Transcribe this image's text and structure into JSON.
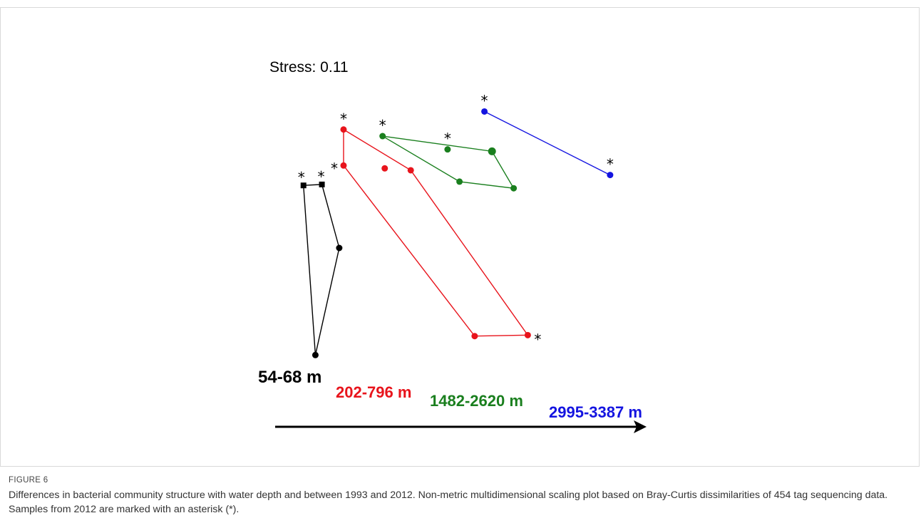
{
  "figure": {
    "label": "FIGURE 6",
    "caption": "Differences in bacterial community structure with water depth and between 1993 and 2012. Non-metric multidimensional scaling plot based on Bray-Curtis dissimilarities of 454 tag sequencing data. Samples from 2012 are marked with an asterisk (*)."
  },
  "chart_data": {
    "type": "scatter",
    "annotation": "Stress: 0.11",
    "marker_2012": "*",
    "series": [
      {
        "name": "54-68 m",
        "color": "#000000",
        "marker": "square-circle",
        "points": [
          [
            -1.39,
            0.66,
            1
          ],
          [
            -1.22,
            0.67,
            1
          ],
          [
            -1.06,
            0.0,
            0
          ],
          [
            -1.28,
            -1.13,
            0
          ]
        ],
        "hull": [
          0,
          1,
          2,
          3
        ]
      },
      {
        "name": "202-796 m",
        "color": "#e8141c",
        "marker": "circle",
        "points": [
          [
            -1.02,
            1.25,
            1
          ],
          [
            -1.02,
            0.87,
            1
          ],
          [
            -0.64,
            0.84,
            0
          ],
          [
            -0.4,
            0.82,
            0
          ],
          [
            0.19,
            -0.93,
            0
          ],
          [
            0.68,
            -0.92,
            1
          ]
        ],
        "hull": [
          0,
          3,
          5,
          4,
          1
        ]
      },
      {
        "name": "1482-2620 m",
        "color": "#1a7f1e",
        "marker": "circle",
        "points": [
          [
            -0.66,
            1.18,
            1
          ],
          [
            -0.06,
            1.04,
            1
          ],
          [
            0.35,
            1.02,
            0
          ],
          [
            0.55,
            0.63,
            0
          ],
          [
            0.05,
            0.7,
            0
          ]
        ],
        "hull": [
          0,
          2,
          3,
          4
        ]
      },
      {
        "name": "2995-3387 m",
        "color": "#1414e0",
        "marker": "circle",
        "points": [
          [
            0.28,
            1.44,
            1
          ],
          [
            1.44,
            0.77,
            1
          ]
        ],
        "hull": [
          0,
          1
        ]
      }
    ],
    "arrow": "increasing water depth"
  }
}
